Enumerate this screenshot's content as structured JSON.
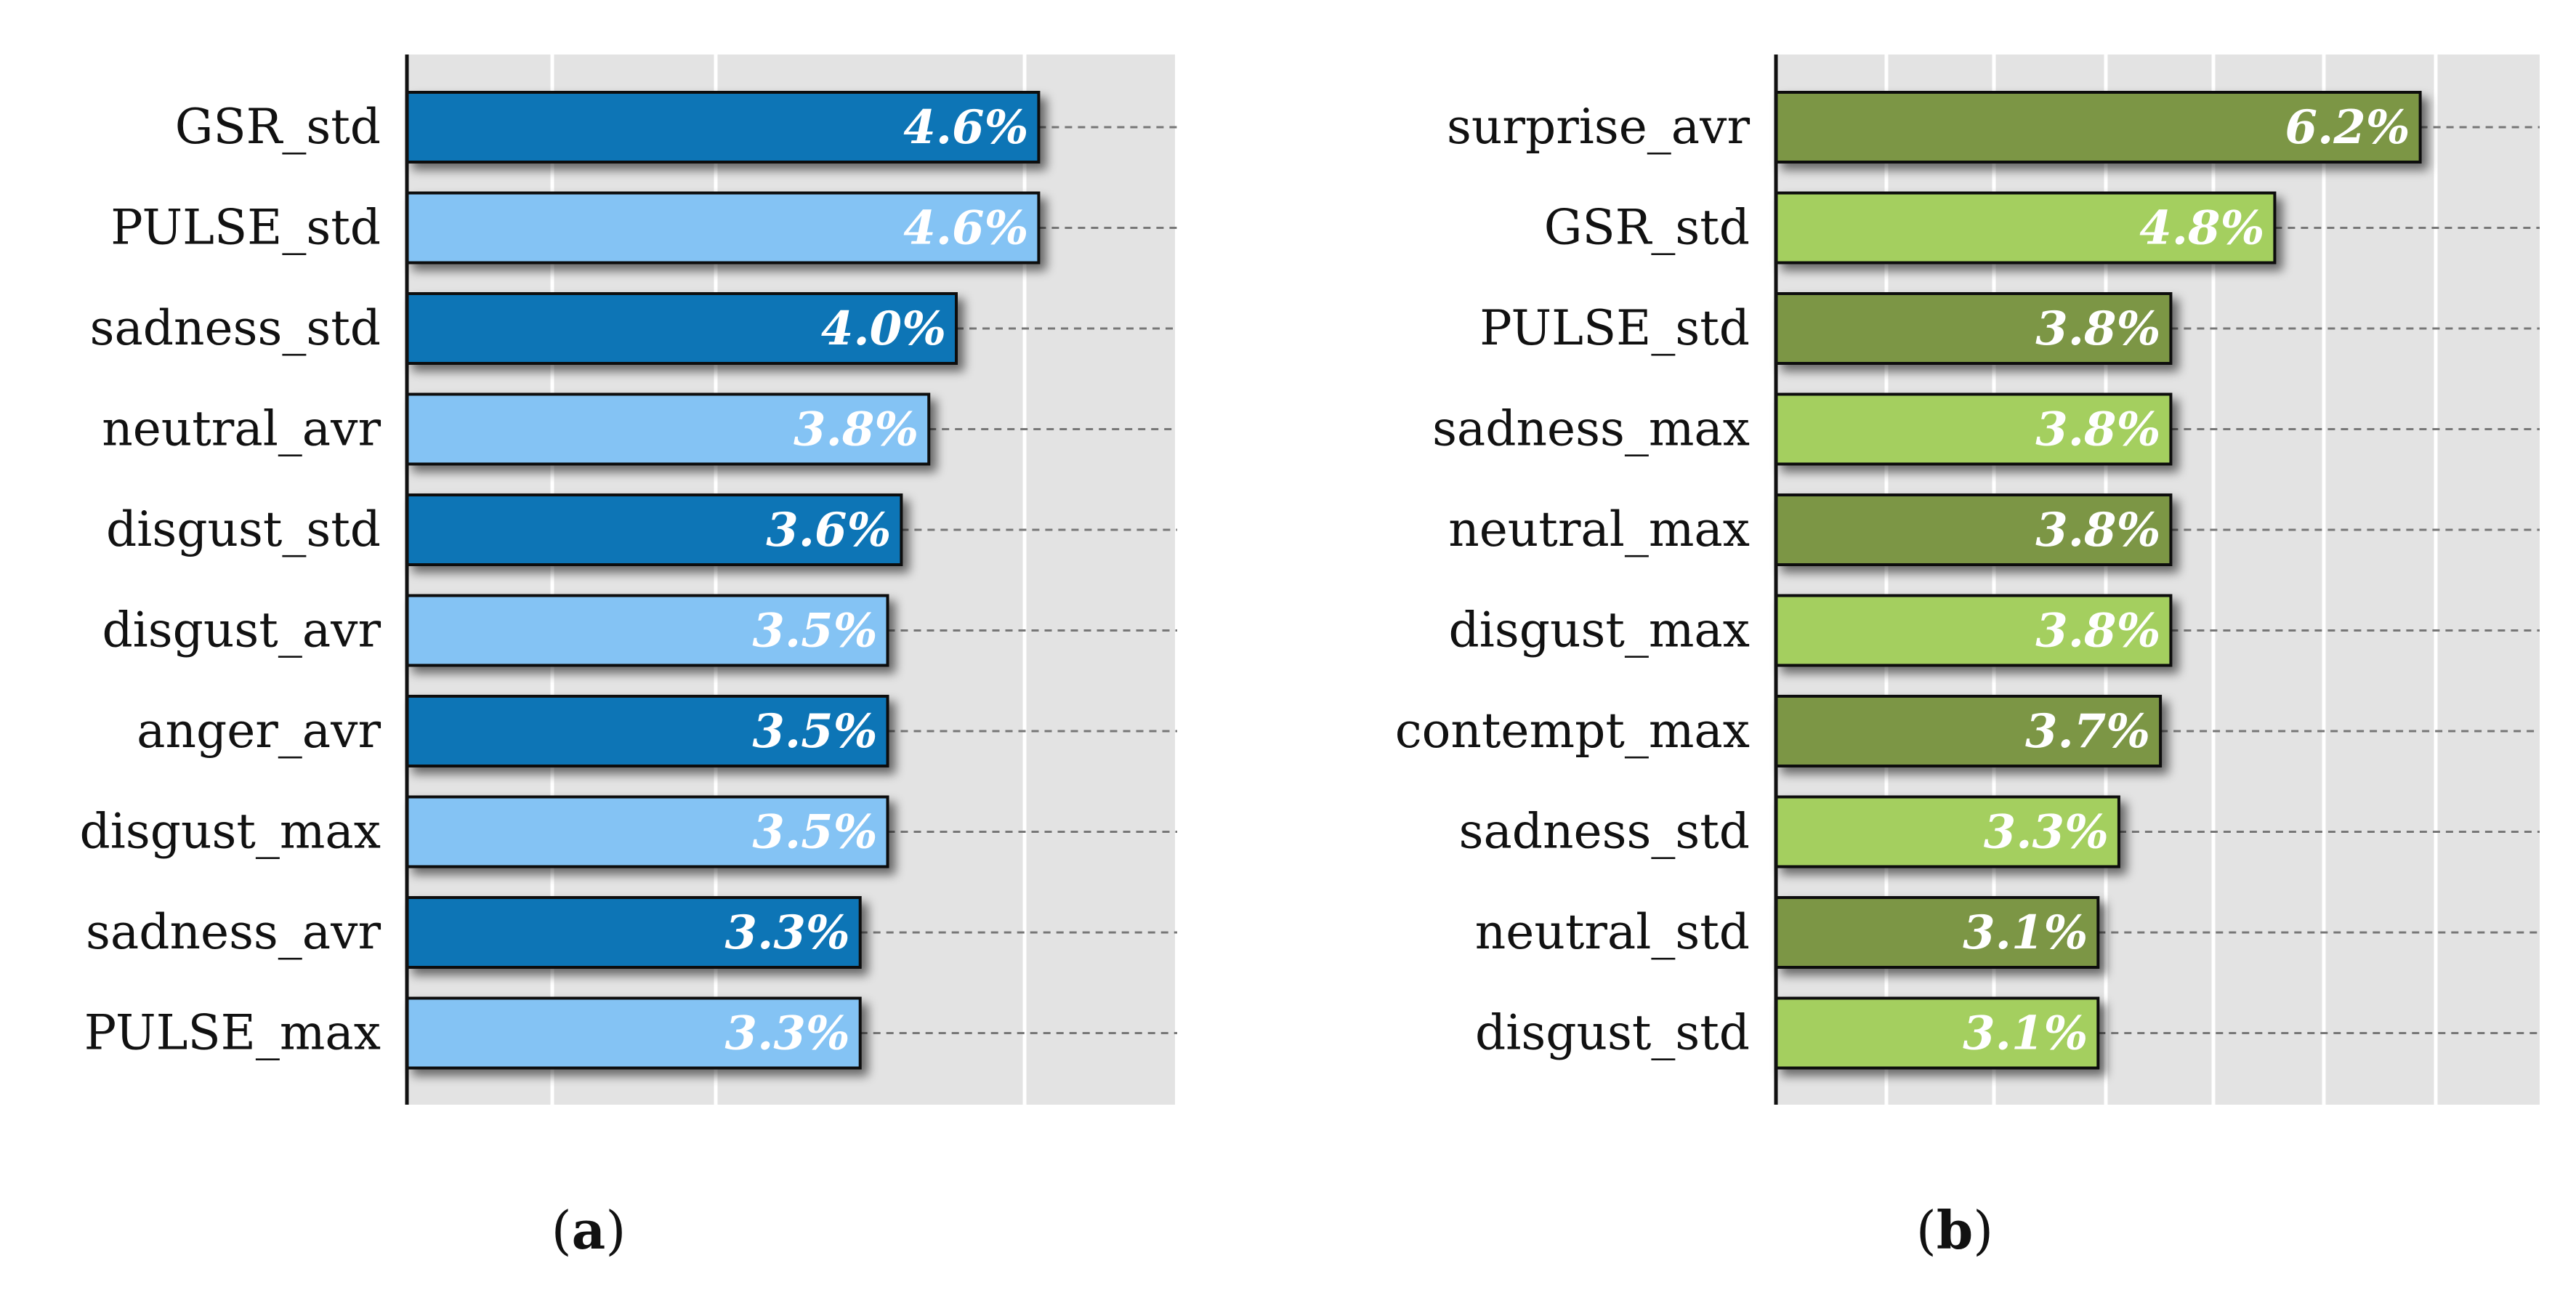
{
  "chart_data": [
    {
      "type": "bar",
      "orientation": "horizontal",
      "panel_label": "a",
      "categories": [
        "GSR_std",
        "PULSE_std",
        "sadness_std",
        "neutral_avr",
        "disgust_std",
        "disgust_avr",
        "anger_avr",
        "disgust_max",
        "sadness_avr",
        "PULSE_max"
      ],
      "values": [
        4.6,
        4.6,
        4.0,
        3.8,
        3.6,
        3.5,
        3.5,
        3.5,
        3.3,
        3.3
      ],
      "value_labels": [
        "4.6%",
        "4.6%",
        "4.0%",
        "3.8%",
        "3.6%",
        "3.5%",
        "3.5%",
        "3.5%",
        "3.3%",
        "3.3%"
      ],
      "xlim": [
        0,
        5
      ],
      "grid": true,
      "colors": [
        "#0a74b6",
        "#84c3f4"
      ],
      "title": "",
      "xlabel": "",
      "ylabel": ""
    },
    {
      "type": "bar",
      "orientation": "horizontal",
      "panel_label": "b",
      "categories": [
        "surprise_avr",
        "GSR_std",
        "PULSE_std",
        "sadness_max",
        "neutral_max",
        "disgust_max",
        "contempt_max",
        "sadness_std",
        "neutral_std",
        "disgust_std"
      ],
      "values": [
        6.2,
        4.8,
        3.8,
        3.8,
        3.8,
        3.8,
        3.7,
        3.3,
        3.1,
        3.1
      ],
      "value_labels": [
        "6.2%",
        "4.8%",
        "3.8%",
        "3.8%",
        "3.8%",
        "3.8%",
        "3.7%",
        "3.3%",
        "3.1%",
        "3.1%"
      ],
      "xlim": [
        0,
        7
      ],
      "grid": true,
      "colors": [
        "#7c9645",
        "#a4cf5f"
      ],
      "title": "",
      "xlabel": "",
      "ylabel": ""
    }
  ]
}
